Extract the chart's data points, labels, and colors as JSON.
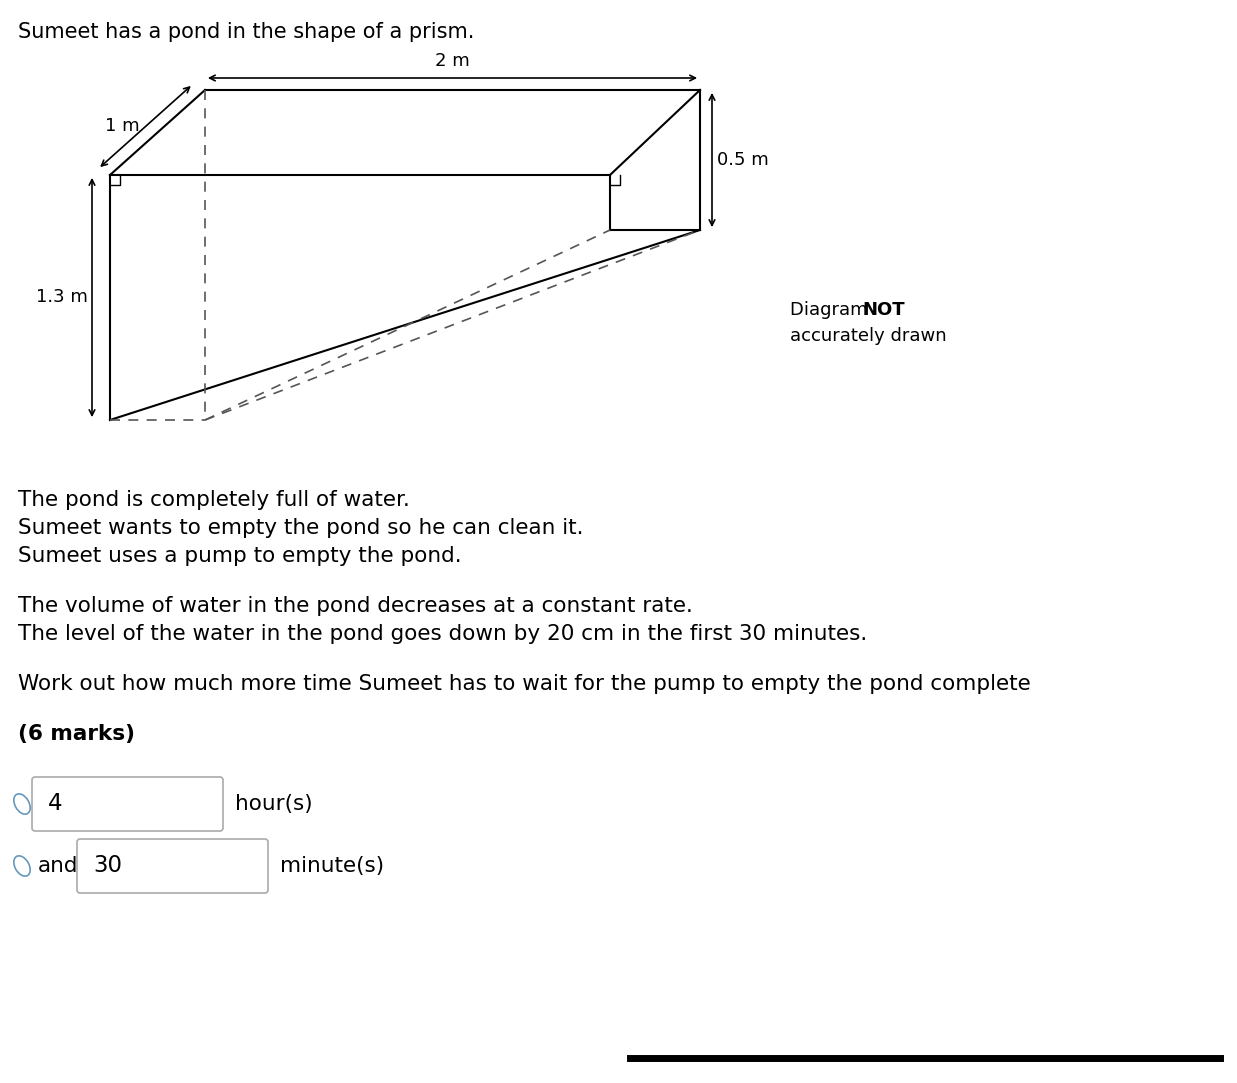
{
  "title": "Sumeet has a pond in the shape of a prism.",
  "dim_2m": "2 m",
  "dim_1m": "1 m",
  "dim_05m": "0.5 m",
  "dim_13m": "1.3 m",
  "diagram_note_normal": "Diagram ",
  "diagram_note_bold": "NOT",
  "diagram_note_line2": "accurately drawn",
  "para1_line1": "The pond is completely full of water.",
  "para1_line2": "Sumeet wants to empty the pond so he can clean it.",
  "para1_line3": "Sumeet uses a pump to empty the pond.",
  "para2_line1": "The volume of water in the pond decreases at a constant rate.",
  "para2_line2": "The level of the water in the pond goes down by 20 cm in the first 30 minutes.",
  "question": "Work out how much more time Sumeet has to wait for the pump to empty the pond complete",
  "marks": "(6 marks)",
  "answer_hours": "4",
  "answer_minutes": "30",
  "label_hours": "hour(s)",
  "label_minutes": "minute(s)",
  "bg_color": "#ffffff",
  "line_color": "#000000",
  "dashed_color": "#555555"
}
